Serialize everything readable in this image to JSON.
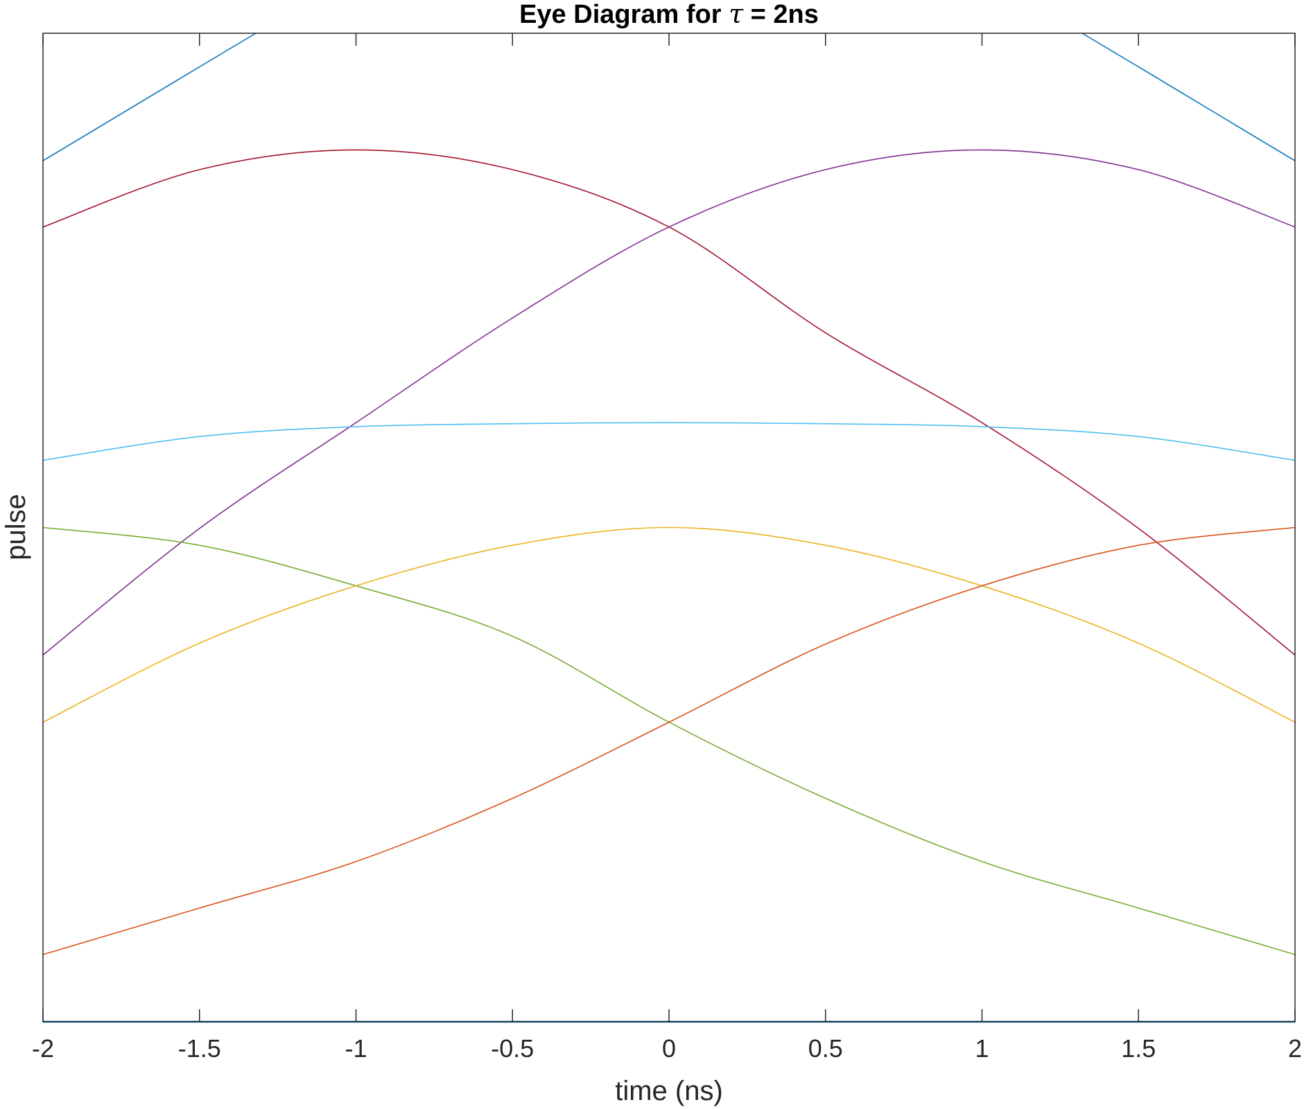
{
  "chart_data": {
    "type": "line",
    "title": "Eye Diagram for τ = 2ns",
    "title_parts": {
      "prefix": "Eye Diagram for ",
      "symbol": "τ",
      "suffix": " = 2ns"
    },
    "xlabel": "time (ns)",
    "ylabel": "pulse",
    "xlim": [
      -2,
      2
    ],
    "ylim": [
      0,
      1
    ],
    "y_ticks_visible": false,
    "grid": false,
    "x_ticks": [
      -2,
      -1.5,
      -1,
      -0.5,
      0,
      0.5,
      1,
      1.5,
      2
    ],
    "x_tick_labels": [
      "-2",
      "-1.5",
      "-1",
      "-0.5",
      "0",
      "0.5",
      "1",
      "1.5",
      "2"
    ],
    "series": [
      {
        "color": "#0072BD",
        "x": [
          -2,
          -1.5,
          -1.32
        ],
        "y": [
          0.871,
          0.966,
          1.0
        ]
      },
      {
        "color": "#0072BD",
        "x": [
          1.32,
          1.5,
          2
        ],
        "y": [
          1.0,
          0.966,
          0.871
        ]
      },
      {
        "color": "#0072BD",
        "x": [
          -2,
          2
        ],
        "y": [
          0.0,
          0.0
        ]
      },
      {
        "color": "#A2142F",
        "x": [
          -2,
          -1.5,
          -1,
          -0.5,
          0,
          0.5,
          1,
          1.5,
          2
        ],
        "y": [
          0.804,
          0.862,
          0.882,
          0.862,
          0.804,
          0.697,
          0.606,
          0.499,
          0.371
        ]
      },
      {
        "color": "#7E2F8E",
        "x": [
          -2,
          -1.5,
          -1,
          -0.5,
          0,
          0.5,
          1,
          1.5,
          2
        ],
        "y": [
          0.371,
          0.499,
          0.606,
          0.712,
          0.804,
          0.862,
          0.882,
          0.862,
          0.804
        ]
      },
      {
        "color": "#4DBEEE",
        "x": [
          -2,
          -1.5,
          -1,
          -0.5,
          0,
          0.5,
          1,
          1.5,
          2
        ],
        "y": [
          0.568,
          0.592,
          0.602,
          0.605,
          0.606,
          0.605,
          0.602,
          0.592,
          0.568
        ]
      },
      {
        "color": "#77AC30",
        "x": [
          -2,
          -1.5,
          -1,
          -0.5,
          0,
          0.5,
          1,
          1.5,
          2
        ],
        "y": [
          0.5,
          0.482,
          0.441,
          0.39,
          0.303,
          0.226,
          0.162,
          0.115,
          0.068
        ]
      },
      {
        "color": "#EDB120",
        "x": [
          -2,
          -1.5,
          -1,
          -0.5,
          0,
          0.5,
          1,
          1.5,
          2
        ],
        "y": [
          0.303,
          0.383,
          0.441,
          0.482,
          0.5,
          0.482,
          0.441,
          0.383,
          0.303
        ]
      },
      {
        "color": "#D95319",
        "x": [
          -2,
          -1.5,
          -1,
          -0.5,
          0,
          0.5,
          1,
          1.5,
          2
        ],
        "y": [
          0.068,
          0.115,
          0.162,
          0.226,
          0.303,
          0.382,
          0.441,
          0.482,
          0.5
        ]
      }
    ]
  }
}
